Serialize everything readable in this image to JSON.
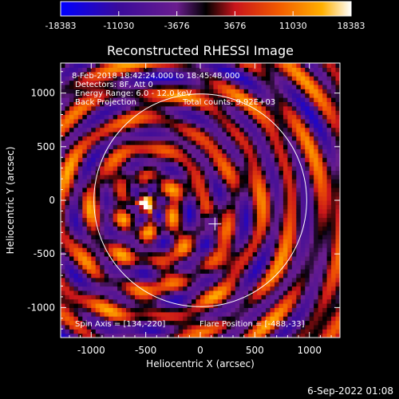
{
  "colorbar": {
    "tick_labels": [
      "-18383",
      "-11030",
      "-3676",
      "3676",
      "11030",
      "18383"
    ],
    "tick_values": [
      -18383,
      -11030,
      -3676,
      3676,
      11030,
      18383
    ],
    "range": [
      -18383,
      18383
    ]
  },
  "chart_data": {
    "type": "heatmap",
    "title": "Reconstructed RHESSI Image",
    "xlabel": "Heliocentric X (arcsec)",
    "ylabel": "Heliocentric Y (arcsec)",
    "xlim": [
      -1280,
      1280
    ],
    "ylim": [
      -1280,
      1280
    ],
    "x_tick_labels": [
      "-1000",
      "-500",
      "0",
      "500",
      "1000"
    ],
    "x_ticks": [
      -1000,
      -500,
      0,
      500,
      1000
    ],
    "y_tick_labels": [
      "1000",
      "500",
      "0",
      "-500",
      "-1000"
    ],
    "y_ticks": [
      1000,
      500,
      0,
      -500,
      -1000
    ],
    "annotations": [
      "8-Feb-2018 18:42:24.000 to 18:45:48.000",
      "Detectors: 8F, Att 0",
      "Energy Range: 6.0 - 12.0 keV",
      "Back Projection",
      "Total counts: 9.92E+03",
      "Spin Axis = [134,-220]",
      "Flare Position = [-488,-33]"
    ],
    "spin_axis": [
      134,
      -220
    ],
    "flare_position": [
      -488,
      -33
    ],
    "solar_limb_radius": 975,
    "colormap": [
      "#0000ff",
      "#3a0b9a",
      "#6a1d8e",
      "#000000",
      "#c8141b",
      "#f25a00",
      "#ffb000",
      "#ffffff"
    ]
  },
  "footer": {
    "date": "6-Sep-2022 01:08"
  }
}
